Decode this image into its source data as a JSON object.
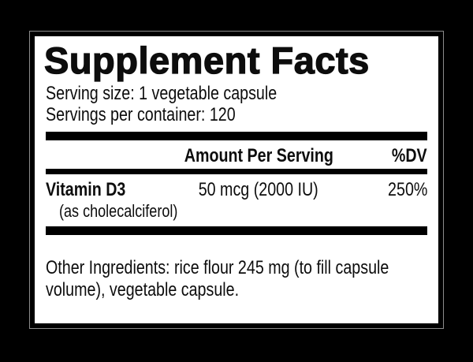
{
  "label": {
    "title": "Supplement Facts",
    "serving_size": "Serving size: 1 vegetable capsule",
    "servings_per_container": "Servings per container: 120",
    "header": {
      "amount": "Amount Per Serving",
      "dv": "%DV"
    },
    "rows": [
      {
        "name": "Vitamin D3",
        "sub_name": "(as cholecalciferol)",
        "amount": "50 mcg (2000 IU)",
        "dv": "250%"
      }
    ],
    "other_ingredients": {
      "text": "Other Ingredients: rice flour 245 mg (to fill capsule volume), vegetable capsule.",
      "lines": [
        "Other Ingredients: rice flour 245 mg (to fill capsule",
        "volume), vegetable capsule."
      ]
    },
    "colors": {
      "page_background": "#000000",
      "panel_background": "#ffffff",
      "frame": "#000000",
      "keyline": "#8c8c8c",
      "ink": "#0d0d0d"
    }
  }
}
